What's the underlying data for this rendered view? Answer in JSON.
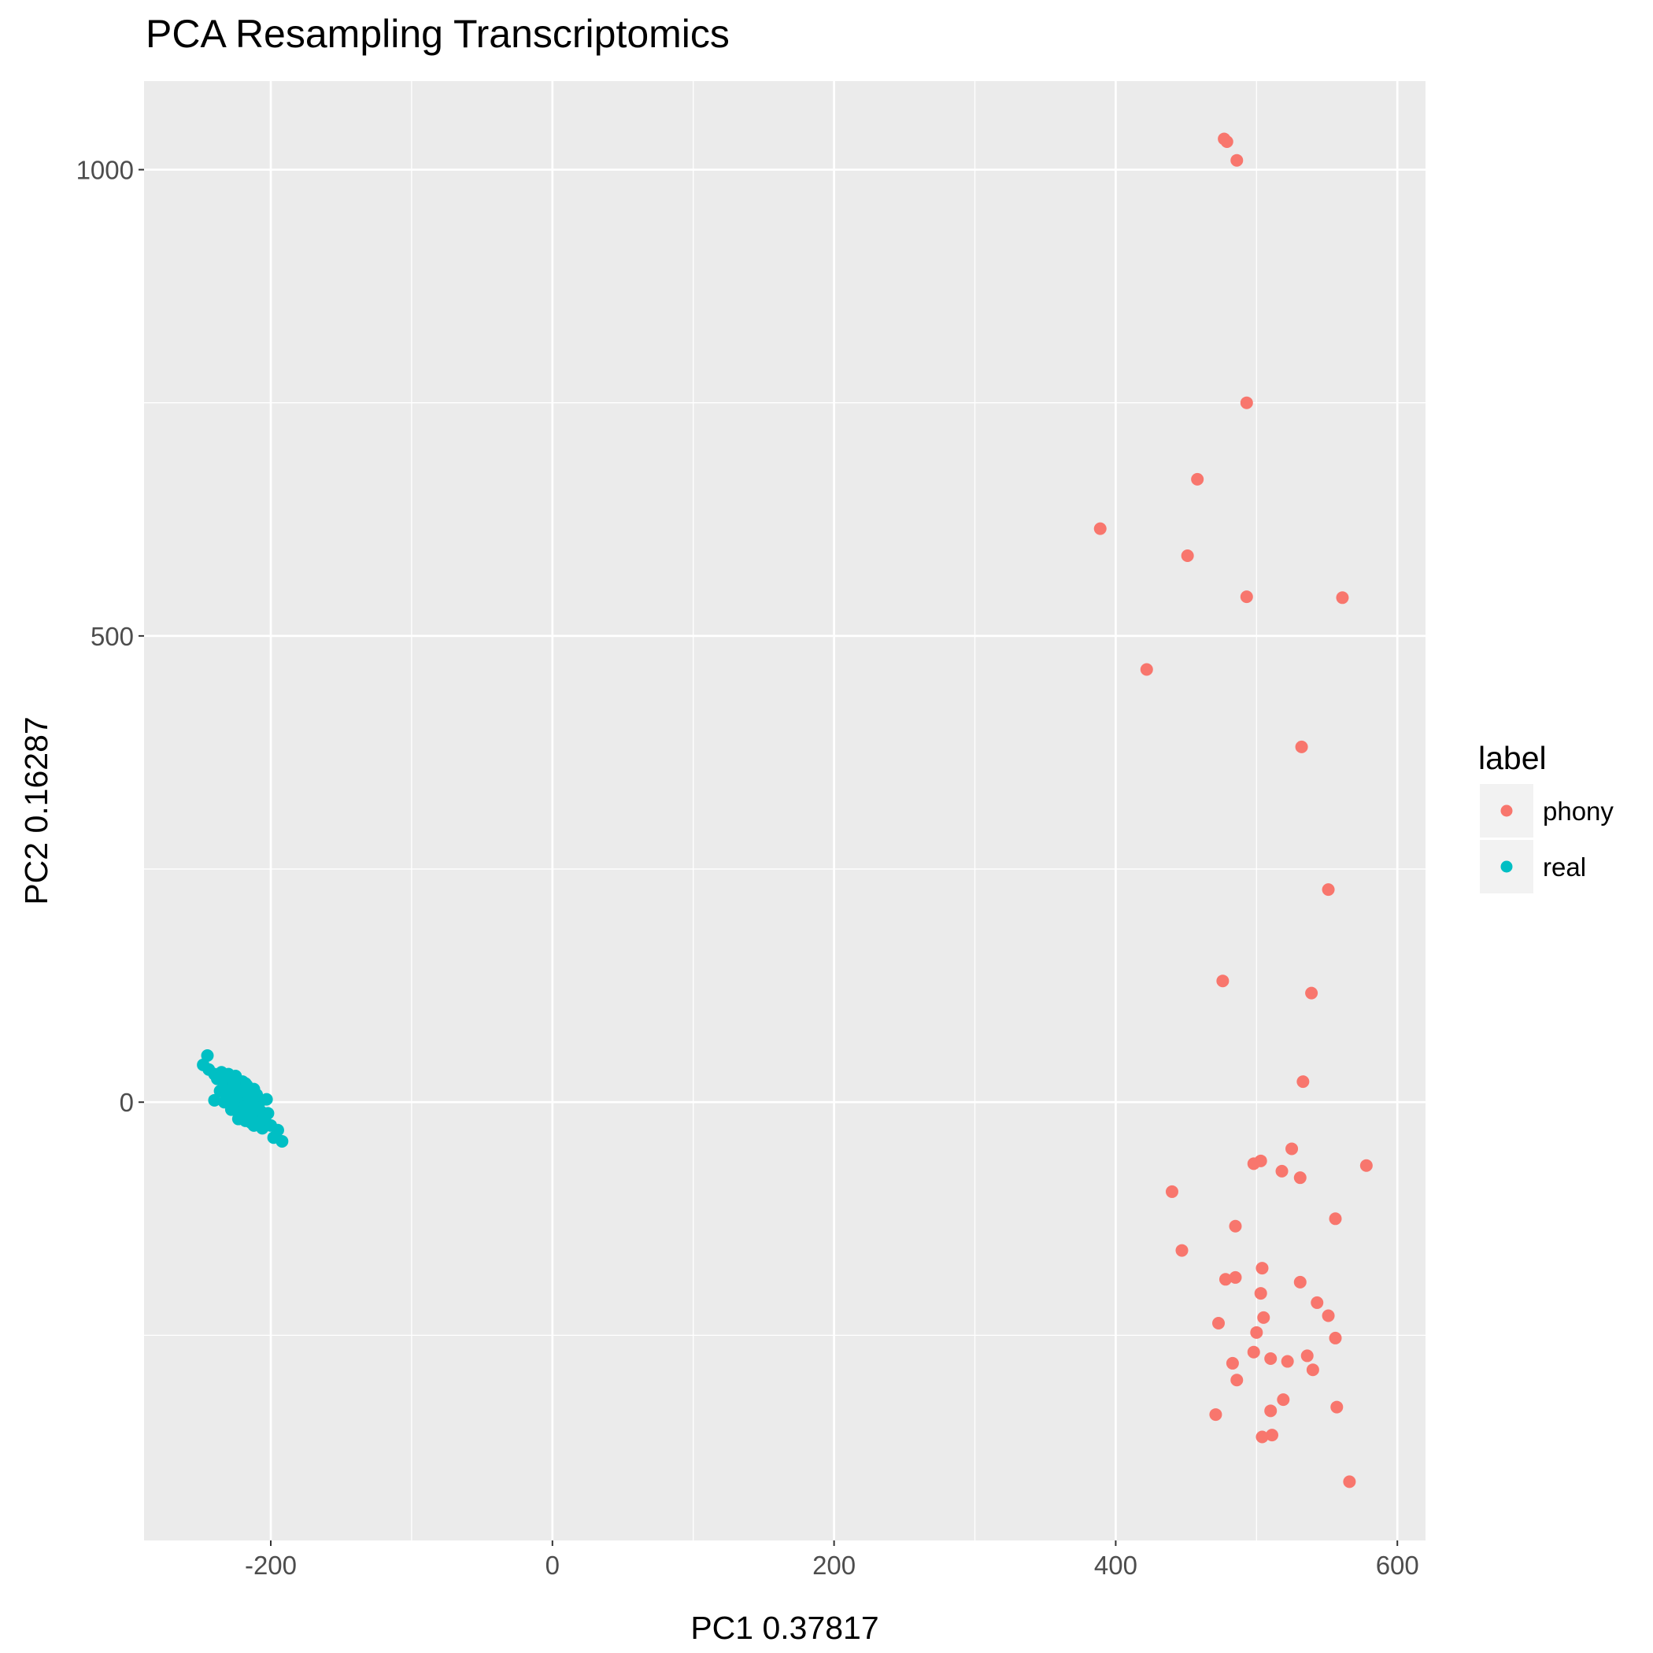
{
  "chart_data": {
    "type": "scatter",
    "title": "PCA Resampling Transcriptomics",
    "xlabel": "PC1 0.37817",
    "ylabel": "PC2 0.16287",
    "xlim": [
      -290,
      620
    ],
    "ylim": [
      -470,
      1095
    ],
    "xticks": [
      -200,
      0,
      200,
      400,
      600
    ],
    "xtick_labels": [
      "-200",
      "0",
      "200",
      "400",
      "600"
    ],
    "xminor": [
      -100,
      100,
      300,
      500
    ],
    "yticks": [
      0,
      500,
      1000
    ],
    "ytick_labels": [
      "0",
      "500",
      "1000"
    ],
    "yminor": [
      -250,
      250,
      750
    ],
    "grid": true,
    "legend": {
      "title": "label",
      "position": "right"
    },
    "series": [
      {
        "name": "phony",
        "color": "#F8766D",
        "points": [
          [
            477,
            1033
          ],
          [
            479,
            1030
          ],
          [
            486,
            1010
          ],
          [
            493,
            750
          ],
          [
            458,
            668
          ],
          [
            389,
            615
          ],
          [
            451,
            586
          ],
          [
            493,
            542
          ],
          [
            561,
            541
          ],
          [
            422,
            464
          ],
          [
            532,
            381
          ],
          [
            551,
            228
          ],
          [
            476,
            130
          ],
          [
            539,
            117
          ],
          [
            533,
            22
          ],
          [
            525,
            -50
          ],
          [
            503,
            -63
          ],
          [
            498,
            -66
          ],
          [
            578,
            -68
          ],
          [
            518,
            -74
          ],
          [
            531,
            -81
          ],
          [
            440,
            -96
          ],
          [
            556,
            -125
          ],
          [
            485,
            -133
          ],
          [
            447,
            -159
          ],
          [
            504,
            -178
          ],
          [
            485,
            -188
          ],
          [
            478,
            -190
          ],
          [
            531,
            -193
          ],
          [
            503,
            -205
          ],
          [
            543,
            -215
          ],
          [
            551,
            -229
          ],
          [
            505,
            -231
          ],
          [
            473,
            -237
          ],
          [
            500,
            -247
          ],
          [
            556,
            -253
          ],
          [
            498,
            -268
          ],
          [
            536,
            -272
          ],
          [
            510,
            -275
          ],
          [
            522,
            -278
          ],
          [
            540,
            -287
          ],
          [
            483,
            -280
          ],
          [
            486,
            -298
          ],
          [
            519,
            -319
          ],
          [
            510,
            -331
          ],
          [
            471,
            -335
          ],
          [
            557,
            -327
          ],
          [
            504,
            -359
          ],
          [
            511,
            -357
          ],
          [
            566,
            -407
          ]
        ]
      },
      {
        "name": "real",
        "color": "#00BFC4",
        "points": [
          [
            -245,
            50
          ],
          [
            -248,
            40
          ],
          [
            -244,
            35
          ],
          [
            -240,
            30
          ],
          [
            -235,
            32
          ],
          [
            -230,
            30
          ],
          [
            -225,
            28
          ],
          [
            -220,
            22
          ],
          [
            -218,
            20
          ],
          [
            -238,
            25
          ],
          [
            -232,
            20
          ],
          [
            -228,
            15
          ],
          [
            -222,
            12
          ],
          [
            -215,
            10
          ],
          [
            -210,
            8
          ],
          [
            -236,
            12
          ],
          [
            -230,
            8
          ],
          [
            -226,
            5
          ],
          [
            -220,
            3
          ],
          [
            -214,
            2
          ],
          [
            -208,
            0
          ],
          [
            -203,
            3
          ],
          [
            -240,
            2
          ],
          [
            -233,
            0
          ],
          [
            -225,
            -2
          ],
          [
            -219,
            -5
          ],
          [
            -213,
            -8
          ],
          [
            -207,
            -10
          ],
          [
            -202,
            -12
          ],
          [
            -228,
            -8
          ],
          [
            -222,
            -12
          ],
          [
            -216,
            -15
          ],
          [
            -210,
            -18
          ],
          [
            -204,
            -20
          ],
          [
            -218,
            -20
          ],
          [
            -212,
            -25
          ],
          [
            -206,
            -28
          ],
          [
            -200,
            -25
          ],
          [
            -195,
            -30
          ],
          [
            -198,
            -38
          ],
          [
            -192,
            -42
          ],
          [
            -226,
            20
          ],
          [
            -217,
            18
          ],
          [
            -212,
            14
          ],
          [
            -223,
            -18
          ],
          [
            -205,
            -15
          ],
          [
            -209,
            -6
          ],
          [
            -224,
            6
          ],
          [
            -214,
            -22
          ],
          [
            -231,
            10
          ]
        ]
      }
    ]
  }
}
